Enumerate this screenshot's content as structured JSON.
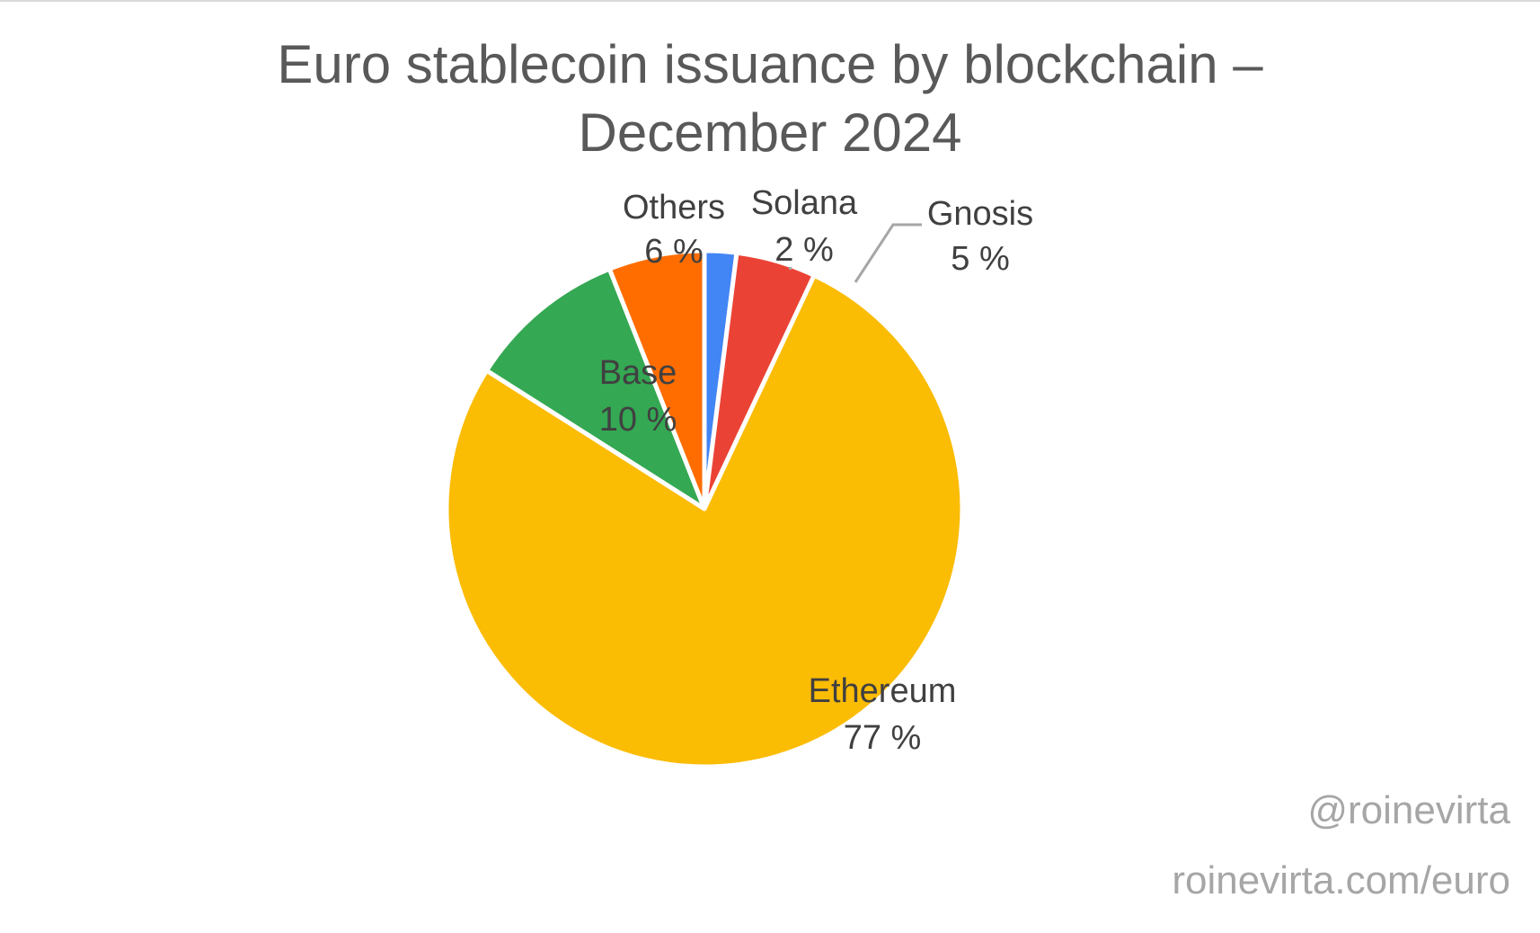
{
  "title_line1": "Euro stablecoin issuance by blockchain –",
  "title_line2": "December 2024",
  "credits": {
    "handle": "@roinevirta",
    "url": "roinevirta.com/euro"
  },
  "chart_data": {
    "type": "pie",
    "title": "Euro stablecoin issuance by blockchain – December 2024",
    "start_angle": "12 o'clock, clockwise",
    "slices": [
      {
        "label": "Solana",
        "value": 2,
        "display": "2 %",
        "color": "#4285f4"
      },
      {
        "label": "Gnosis",
        "value": 5,
        "display": "5 %",
        "color": "#ea4335"
      },
      {
        "label": "Ethereum",
        "value": 77,
        "display": "77 %",
        "color": "#fbbc04"
      },
      {
        "label": "Base",
        "value": 10,
        "display": "10 %",
        "color": "#34a853"
      },
      {
        "label": "Others",
        "value": 6,
        "display": "6 %",
        "color": "#ff6d01"
      }
    ],
    "legend": "none (data labels on slices)",
    "unit": "%"
  }
}
